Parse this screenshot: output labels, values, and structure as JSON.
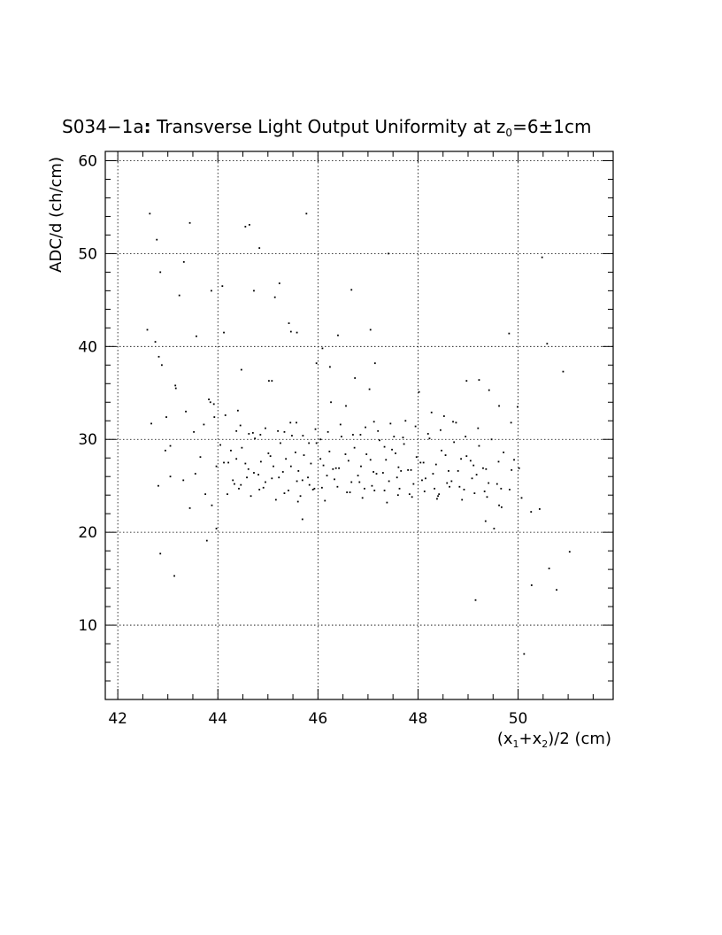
{
  "chart_data": {
    "type": "scatter",
    "title": "S034−1a: Transverse Light Output Uniformity at z₀=6±1cm",
    "title_parts": {
      "prefix": "S034−1a",
      "colon": ":",
      "main": " Transverse Light Output Uniformity at z",
      "subscript": "0",
      "suffix": "=6±1cm"
    },
    "xlabel": "(x₁+x₂)/2 (cm)",
    "xlabel_parts": {
      "a": "(x",
      "sub1": "1",
      "b": "+x",
      "sub2": "2",
      "c": ")/2 (cm)"
    },
    "ylabel": "ADC/d (ch/cm)",
    "xlim": [
      41.75,
      51.9
    ],
    "ylim": [
      2.0,
      61.0
    ],
    "x_ticks": [
      "42",
      "44",
      "46",
      "48",
      "50"
    ],
    "x_tick_values": [
      42,
      44,
      46,
      48,
      50
    ],
    "y_ticks": [
      "10",
      "20",
      "30",
      "40",
      "50",
      "60"
    ],
    "y_tick_values": [
      10,
      20,
      30,
      40,
      50,
      60
    ],
    "grid": true,
    "grid_style": "dotted",
    "colors": {
      "points": "#000000",
      "axes": "#000000",
      "background": "#ffffff"
    },
    "series": [
      {
        "x": [
          42.64,
          42.75,
          42.78,
          42.85,
          42.88,
          42.95,
          43.05,
          43.16,
          43.23,
          43.32,
          43.44,
          43.57,
          43.82,
          43.87,
          43.93,
          44.09,
          44.12,
          44.55,
          44.63,
          44.72,
          44.83,
          45.14,
          45.23,
          45.42,
          45.77,
          46.67,
          47.41,
          47.05,
          47.14,
          45.97,
          46.09,
          46.4,
          47.03,
          46.74,
          46.24,
          45.58,
          45.46,
          45.02,
          44.47,
          43.85,
          44.4,
          42.59,
          42.85,
          43.13,
          43.44,
          43.78,
          43.97,
          45.69,
          49.15,
          49.35,
          49.52,
          49.67,
          49.82,
          49.99,
          50.12,
          50.27,
          50.43,
          50.62,
          50.77,
          50.9,
          51.03,
          50.48,
          50.58,
          50.02,
          49.86,
          49.62,
          49.42,
          49.22,
          48.97,
          48.76,
          48.52,
          48.27,
          48.02,
          47.75,
          47.52,
          47.33,
          47.12,
          46.85,
          46.56,
          46.26,
          46.05,
          45.82,
          45.57,
          45.33,
          45.08,
          44.85,
          44.62,
          44.37,
          44.15,
          43.92,
          43.72,
          43.52,
          43.36,
          43.15,
          42.97,
          42.82,
          42.67,
          42.81,
          43.05,
          43.31,
          43.55,
          43.75,
          43.97,
          44.21,
          44.46,
          44.72,
          44.95,
          45.22,
          45.46,
          45.69,
          45.93,
          46.18,
          46.42,
          46.67,
          46.93,
          47.17,
          47.42,
          47.66,
          47.91,
          48.15,
          48.42,
          48.67,
          48.92,
          49.17,
          49.41,
          49.66,
          49.87,
          50.07,
          50.26,
          44.05,
          44.26,
          44.48,
          44.74,
          45.01,
          45.25,
          45.48,
          45.72,
          45.97,
          46.23,
          46.47,
          46.73,
          46.97,
          47.23,
          47.48,
          47.72,
          47.97,
          48.23,
          48.47,
          48.72,
          48.97,
          49.22,
          49.47,
          49.71,
          49.92,
          44.19,
          44.42,
          44.66,
          44.91,
          45.16,
          45.41,
          45.65,
          45.9,
          46.14,
          46.39,
          46.64,
          46.89,
          47.13,
          47.38,
          47.63,
          47.88,
          48.13,
          48.38,
          48.63,
          48.88,
          49.13,
          49.38,
          49.62,
          44.12,
          44.37,
          44.61,
          44.86,
          45.11,
          45.36,
          45.61,
          45.86,
          46.11,
          46.36,
          46.61,
          46.86,
          47.11,
          47.36,
          47.61,
          47.86,
          48.11,
          48.36,
          48.61,
          48.86,
          49.11,
          49.36,
          49.61,
          43.65,
          43.88,
          44.33,
          44.58,
          44.83,
          45.08,
          45.33,
          45.58,
          45.83,
          46.08,
          46.33,
          46.58,
          46.83,
          47.08,
          47.33,
          47.58,
          47.83,
          48.08,
          48.33,
          48.58,
          48.83,
          49.08,
          49.33,
          49.58,
          49.83,
          44.3,
          44.55,
          44.81,
          45.05,
          45.3,
          45.55,
          45.8,
          46.05,
          46.3,
          46.55,
          46.8,
          47.05,
          47.3,
          47.55,
          47.8,
          48.05,
          48.3,
          48.55,
          48.8,
          49.05,
          49.3,
          44.45,
          44.7,
          44.95,
          45.2,
          45.45,
          45.7,
          45.95,
          46.2,
          46.45,
          46.7,
          46.95,
          47.2,
          47.45,
          47.7,
          47.95,
          48.2,
          48.45,
          48.7,
          48.95,
          49.2,
          45.6,
          47.6,
          48.4
        ],
        "y": [
          54.3,
          40.5,
          51.5,
          48.0,
          38.0,
          28.8,
          29.3,
          35.5,
          45.5,
          49.1,
          53.3,
          41.1,
          34.3,
          46.0,
          32.4,
          46.5,
          41.5,
          52.9,
          53.1,
          46.0,
          50.6,
          45.3,
          46.8,
          42.5,
          54.3,
          46.1,
          50.0,
          41.8,
          38.2,
          38.2,
          39.8,
          41.2,
          35.4,
          36.6,
          37.8,
          41.5,
          41.6,
          36.3,
          37.5,
          34.0,
          33.1,
          41.8,
          17.7,
          15.3,
          22.6,
          19.1,
          20.4,
          21.4,
          12.7,
          21.2,
          20.4,
          22.7,
          41.4,
          33.5,
          6.9,
          14.3,
          22.5,
          16.1,
          13.8,
          37.3,
          17.9,
          49.6,
          40.3,
          26.9,
          31.8,
          33.6,
          35.3,
          36.4,
          36.3,
          31.8,
          32.5,
          32.9,
          35.1,
          32.0,
          30.3,
          29.2,
          31.9,
          30.5,
          33.6,
          34.0,
          30.0,
          29.6,
          31.8,
          30.8,
          36.3,
          30.5,
          30.6,
          30.9,
          32.6,
          33.8,
          31.6,
          30.8,
          33.0,
          35.8,
          32.4,
          38.9,
          31.7,
          25.0,
          26.0,
          25.6,
          26.3,
          24.1,
          27.1,
          27.5,
          25.1,
          26.4,
          25.4,
          25.9,
          27.1,
          25.6,
          24.7,
          26.1,
          26.9,
          25.4,
          24.7,
          26.3,
          25.5,
          26.6,
          25.2,
          25.8,
          24.1,
          25.5,
          24.6,
          26.2,
          25.3,
          24.7,
          26.7,
          23.7,
          22.2,
          29.4,
          28.8,
          29.1,
          30.1,
          28.5,
          29.6,
          30.4,
          28.3,
          29.6,
          28.7,
          30.3,
          29.1,
          28.4,
          29.9,
          28.9,
          29.5,
          28.1,
          30.1,
          28.8,
          29.7,
          28.2,
          29.3,
          30.0,
          28.6,
          27.8,
          24.1,
          24.7,
          23.9,
          24.8,
          23.5,
          24.5,
          23.9,
          24.6,
          23.4,
          24.9,
          24.3,
          23.7,
          24.5,
          23.2,
          24.7,
          23.8,
          24.4,
          23.6,
          24.9,
          23.5,
          24.2,
          23.8,
          22.9,
          27.5,
          27.9,
          26.8,
          27.6,
          27.1,
          27.9,
          26.6,
          27.4,
          27.2,
          26.9,
          27.7,
          27.1,
          26.5,
          27.8,
          27.0,
          26.7,
          27.5,
          27.3,
          26.6,
          27.9,
          27.2,
          26.8,
          27.6,
          28.1,
          22.9,
          25.2,
          25.9,
          24.6,
          25.8,
          24.2,
          25.5,
          25.1,
          24.8,
          25.7,
          24.3,
          25.4,
          25.0,
          24.5,
          25.9,
          24.1,
          25.6,
          24.7,
          25.3,
          24.9,
          25.8,
          24.4,
          25.2,
          24.6,
          25.6,
          27.4,
          26.2,
          28.2,
          26.5,
          28.6,
          25.9,
          27.9,
          26.8,
          28.4,
          26.1,
          27.8,
          26.4,
          28.5,
          26.7,
          27.5,
          26.3,
          28.3,
          26.6,
          27.7,
          26.9,
          31.5,
          30.7,
          31.2,
          30.9,
          31.8,
          30.4,
          31.1,
          30.8,
          31.6,
          30.5,
          31.3,
          30.9,
          31.7,
          30.2,
          31.4,
          30.6,
          31.0,
          31.9,
          30.3,
          31.2,
          23.3,
          24.0,
          23.9
        ]
      }
    ]
  }
}
